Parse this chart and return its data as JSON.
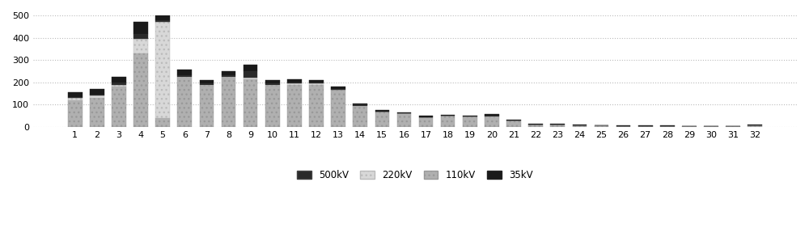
{
  "categories": [
    1,
    2,
    3,
    4,
    5,
    6,
    7,
    8,
    9,
    10,
    11,
    12,
    13,
    14,
    15,
    16,
    17,
    18,
    19,
    20,
    21,
    22,
    23,
    24,
    25,
    26,
    27,
    28,
    29,
    30,
    31,
    32
  ],
  "kV500": [
    5,
    5,
    10,
    20,
    10,
    5,
    5,
    5,
    30,
    5,
    5,
    5,
    5,
    5,
    0,
    0,
    0,
    0,
    0,
    5,
    0,
    0,
    0,
    0,
    0,
    0,
    0,
    0,
    0,
    0,
    0,
    0
  ],
  "kV220": [
    10,
    10,
    10,
    65,
    430,
    5,
    5,
    5,
    5,
    5,
    5,
    5,
    0,
    5,
    0,
    0,
    0,
    0,
    5,
    5,
    0,
    0,
    0,
    0,
    0,
    0,
    0,
    0,
    0,
    0,
    0,
    0
  ],
  "kV110": [
    120,
    130,
    180,
    330,
    40,
    220,
    185,
    220,
    215,
    185,
    190,
    190,
    165,
    90,
    70,
    60,
    45,
    50,
    42,
    42,
    28,
    10,
    10,
    8,
    6,
    5,
    5,
    5,
    3,
    3,
    3,
    8
  ],
  "kV35": [
    20,
    25,
    25,
    55,
    20,
    28,
    15,
    20,
    30,
    15,
    15,
    10,
    10,
    5,
    5,
    5,
    5,
    5,
    5,
    5,
    3,
    3,
    3,
    2,
    2,
    2,
    2,
    2,
    2,
    2,
    2,
    2
  ],
  "color_500": "#2a2a2a",
  "color_220": "#d8d8d8",
  "color_110": "#b0b0b0",
  "color_35": "#1a1a1a",
  "hatch_220": "...",
  "hatch_110": "...",
  "ylim": [
    0,
    500
  ],
  "yticks": [
    0,
    100,
    200,
    300,
    400,
    500
  ],
  "figsize": [
    10.0,
    2.88
  ],
  "dpi": 100,
  "bar_width": 0.65,
  "grid_color": "#bbbbbb",
  "grid_linestyle": ":",
  "grid_linewidth": 0.8
}
